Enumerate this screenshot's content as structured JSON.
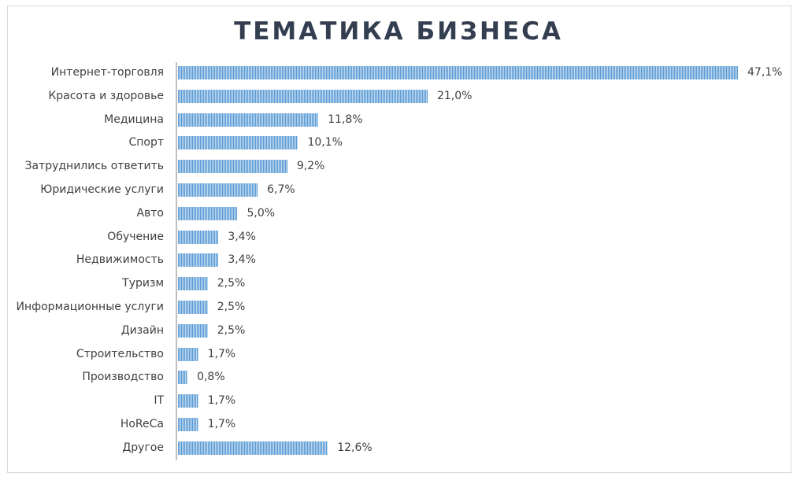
{
  "chart_data": {
    "type": "bar",
    "orientation": "horizontal",
    "title": "ТЕМАТИКА БИЗНЕСА",
    "xlabel": "",
    "ylabel": "",
    "grid": false,
    "legend": null,
    "categories": [
      "Интернет-торговля",
      "Красота и здоровье",
      "Медицина",
      "Спорт",
      "Затруднились ответить",
      "Юридические услуги",
      "Авто",
      "Обучение",
      "Недвижимость",
      "Туризм",
      "Информационные услуги",
      "Дизайн",
      "Строительство",
      "Производство",
      "IT",
      "HoReCa",
      "Другое"
    ],
    "values": [
      47.1,
      21.0,
      11.8,
      10.1,
      9.2,
      6.7,
      5.0,
      3.4,
      3.4,
      2.5,
      2.5,
      2.5,
      1.7,
      0.8,
      1.7,
      1.7,
      12.6
    ],
    "value_labels": [
      "47,1%",
      "21,0%",
      "11,8%",
      "10,1%",
      "9,2%",
      "6,7%",
      "5,0%",
      "3,4%",
      "3,4%",
      "2,5%",
      "2,5%",
      "2,5%",
      "1,7%",
      "0,8%",
      "1,7%",
      "1,7%",
      "12,6%"
    ],
    "unit": "%",
    "colors": {
      "bar": "#5b9bd5",
      "bar_pattern_light": "#bdd7ee",
      "title": "#333f50",
      "text": "#404040",
      "axis": "#bfbfbf"
    }
  }
}
